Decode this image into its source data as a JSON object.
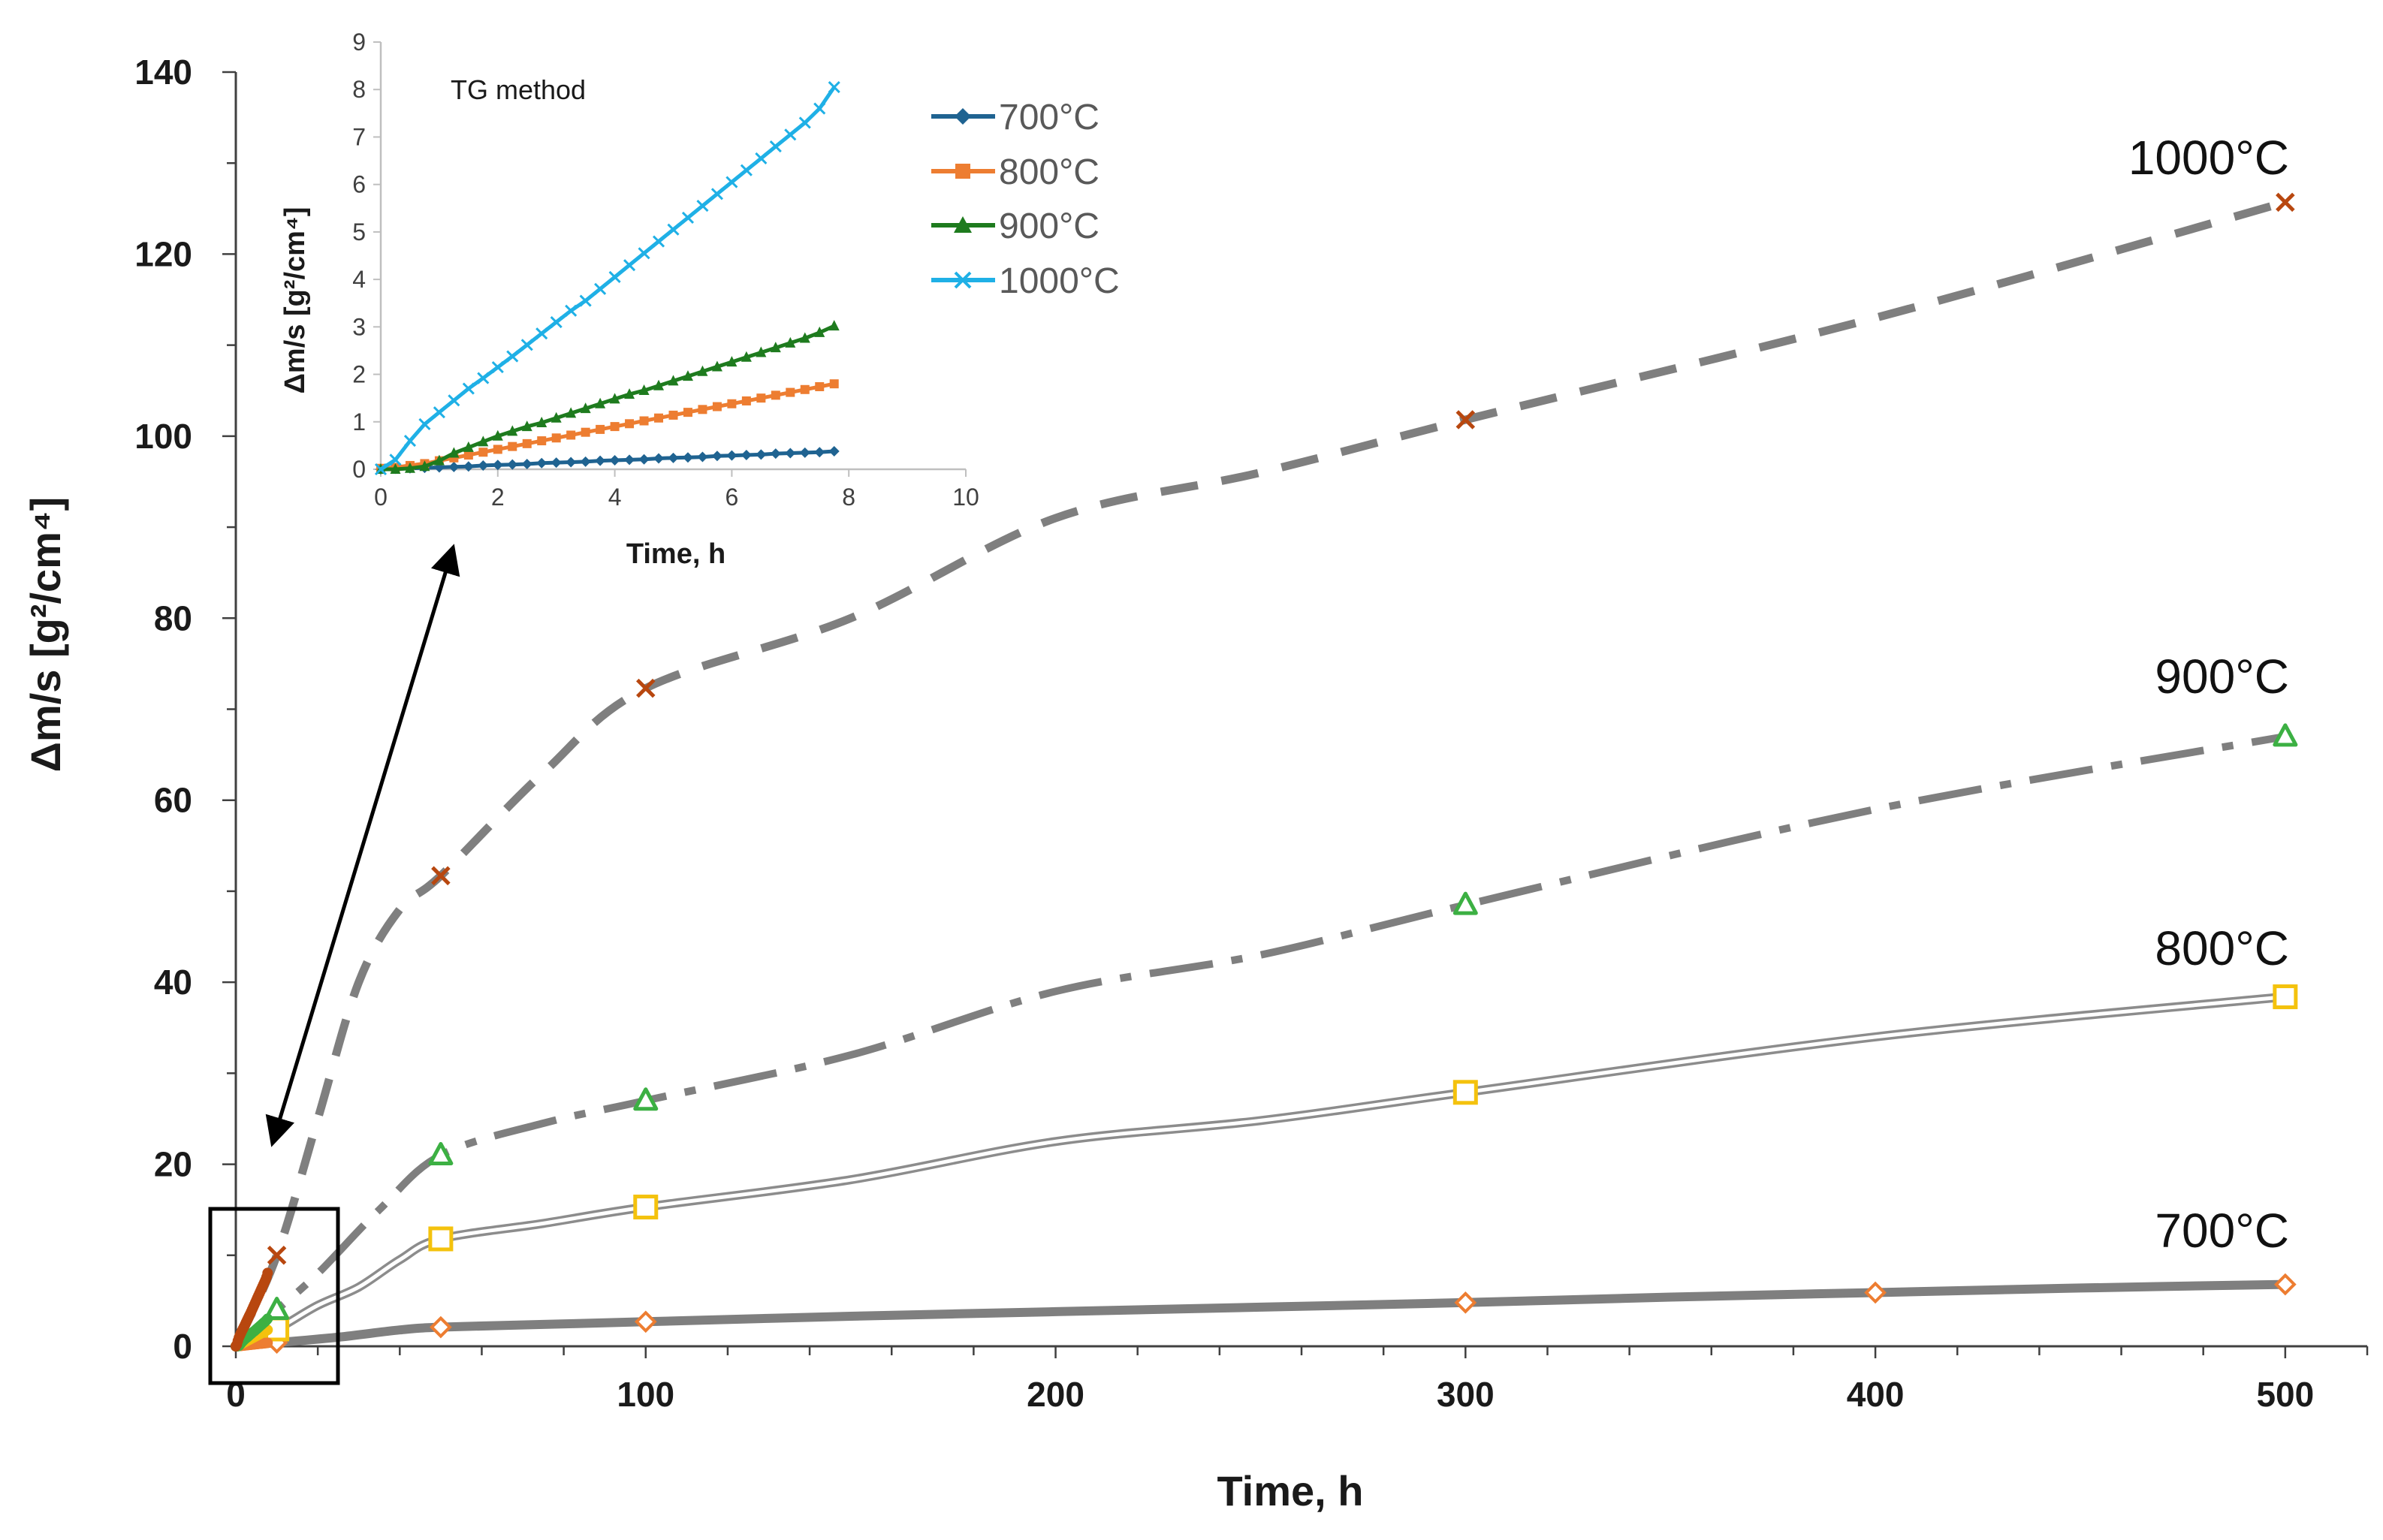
{
  "chart_data": [
    {
      "type": "line",
      "xlabel": "Time, h",
      "ylabel": "Δm/s [g²/cm⁴]",
      "xlim": [
        0,
        520
      ],
      "ylim": [
        0,
        140
      ],
      "x_ticks": [
        0,
        100,
        200,
        300,
        400,
        500
      ],
      "y_ticks": [
        0,
        20,
        40,
        60,
        80,
        100,
        120,
        140
      ],
      "series": [
        {
          "name": "700°C",
          "label": "700°C",
          "marker": "diamond-open",
          "marker_color": "#ED7D31",
          "line_style": "thick-solid",
          "x": [
            10,
            50,
            100,
            300,
            400,
            500
          ],
          "values": [
            0.4,
            2.1,
            2.7,
            4.8,
            5.9,
            6.8
          ],
          "curve": [
            [
              0,
              0
            ],
            [
              10,
              0.4
            ],
            [
              25,
              1.0
            ],
            [
              40,
              1.8
            ],
            [
              50,
              2.1
            ],
            [
              75,
              2.4
            ],
            [
              100,
              2.7
            ],
            [
              150,
              3.3
            ],
            [
              200,
              3.8
            ],
            [
              250,
              4.3
            ],
            [
              300,
              4.8
            ],
            [
              350,
              5.4
            ],
            [
              400,
              5.9
            ],
            [
              450,
              6.4
            ],
            [
              500,
              6.8
            ]
          ]
        },
        {
          "name": "800°C",
          "label": "800°C",
          "marker": "square-open",
          "marker_color": "#F4C20D",
          "line_style": "double",
          "x": [
            10,
            50,
            100,
            300,
            500
          ],
          "values": [
            1.9,
            11.8,
            15.3,
            27.9,
            38.4
          ],
          "curve": [
            [
              0,
              0
            ],
            [
              10,
              1.9
            ],
            [
              20,
              4.5
            ],
            [
              30,
              6.5
            ],
            [
              40,
              9.5
            ],
            [
              50,
              11.8
            ],
            [
              75,
              13.5
            ],
            [
              100,
              15.3
            ],
            [
              150,
              18.3
            ],
            [
              200,
              22.5
            ],
            [
              250,
              24.8
            ],
            [
              300,
              27.9
            ],
            [
              400,
              34.0
            ],
            [
              500,
              38.4
            ]
          ]
        },
        {
          "name": "900°C",
          "label": "900°C",
          "marker": "triangle-open",
          "marker_color": "#3CB043",
          "line_style": "dash-dot",
          "x": [
            10,
            50,
            100,
            300,
            500
          ],
          "values": [
            4.0,
            21.0,
            27.0,
            48.5,
            67.0
          ],
          "curve": [
            [
              0,
              0
            ],
            [
              10,
              4.0
            ],
            [
              20,
              8.0
            ],
            [
              35,
              15.0
            ],
            [
              50,
              21.0
            ],
            [
              75,
              24.5
            ],
            [
              100,
              27.0
            ],
            [
              150,
              32.0
            ],
            [
              200,
              39.0
            ],
            [
              250,
              43.0
            ],
            [
              300,
              48.5
            ],
            [
              400,
              59.0
            ],
            [
              500,
              67.0
            ]
          ]
        },
        {
          "name": "1000°C",
          "label": "1000°C",
          "marker": "x",
          "marker_color": "#B8470F",
          "line_style": "dashed",
          "x": [
            10,
            50,
            100,
            300,
            500
          ],
          "values": [
            10.0,
            51.7,
            72.3,
            101.8,
            125.7
          ],
          "curve": [
            [
              0,
              0
            ],
            [
              10,
              10.0
            ],
            [
              20,
              25.0
            ],
            [
              30,
              40.0
            ],
            [
              40,
              48.0
            ],
            [
              50,
              51.7
            ],
            [
              75,
              63.0
            ],
            [
              100,
              72.3
            ],
            [
              150,
              80.0
            ],
            [
              200,
              91.0
            ],
            [
              250,
              96.0
            ],
            [
              300,
              101.8
            ],
            [
              400,
              113.0
            ],
            [
              500,
              125.7
            ]
          ]
        }
      ]
    },
    {
      "type": "line",
      "title": "TG method",
      "xlabel": "Time, h",
      "ylabel": "Δm/s [g²/cm⁴]",
      "xlim": [
        0,
        10
      ],
      "ylim": [
        0,
        9
      ],
      "x_ticks": [
        0,
        2,
        4,
        6,
        8,
        10
      ],
      "y_ticks": [
        0,
        1,
        2,
        3,
        4,
        5,
        6,
        7,
        8,
        9
      ],
      "legend_position": "right",
      "series": [
        {
          "name": "700°C",
          "color": "#1F6391",
          "marker": "diamond",
          "x": [
            0.0,
            0.25,
            0.5,
            0.75,
            1.0,
            1.25,
            1.5,
            1.75,
            2.0,
            2.25,
            2.5,
            2.75,
            3.0,
            3.25,
            3.5,
            3.75,
            4.0,
            4.25,
            4.5,
            4.75,
            5.0,
            5.25,
            5.5,
            5.75,
            6.0,
            6.25,
            6.5,
            6.75,
            7.0,
            7.25,
            7.5,
            7.75
          ],
          "values": [
            0.0,
            0.01,
            0.02,
            0.03,
            0.04,
            0.05,
            0.06,
            0.08,
            0.09,
            0.1,
            0.11,
            0.13,
            0.14,
            0.15,
            0.16,
            0.18,
            0.19,
            0.2,
            0.21,
            0.23,
            0.24,
            0.25,
            0.26,
            0.28,
            0.29,
            0.3,
            0.31,
            0.33,
            0.34,
            0.35,
            0.36,
            0.38
          ]
        },
        {
          "name": "800°C",
          "color": "#ED7D31",
          "marker": "square",
          "x": [
            0.0,
            0.25,
            0.5,
            0.75,
            1.0,
            1.25,
            1.5,
            1.75,
            2.0,
            2.25,
            2.5,
            2.75,
            3.0,
            3.25,
            3.5,
            3.75,
            4.0,
            4.25,
            4.5,
            4.75,
            5.0,
            5.25,
            5.5,
            5.75,
            6.0,
            6.25,
            6.5,
            6.75,
            7.0,
            7.25,
            7.5,
            7.75
          ],
          "values": [
            0.02,
            0.04,
            0.08,
            0.12,
            0.18,
            0.24,
            0.3,
            0.36,
            0.42,
            0.48,
            0.54,
            0.6,
            0.66,
            0.72,
            0.78,
            0.84,
            0.9,
            0.96,
            1.02,
            1.08,
            1.14,
            1.2,
            1.26,
            1.32,
            1.38,
            1.44,
            1.5,
            1.56,
            1.62,
            1.68,
            1.74,
            1.8
          ]
        },
        {
          "name": "900°C",
          "color": "#1E7B1E",
          "marker": "triangle",
          "x": [
            0.0,
            0.25,
            0.5,
            0.75,
            1.0,
            1.25,
            1.5,
            1.75,
            2.0,
            2.25,
            2.5,
            2.75,
            3.0,
            3.25,
            3.5,
            3.75,
            4.0,
            4.25,
            4.5,
            4.75,
            5.0,
            5.25,
            5.5,
            5.75,
            6.0,
            6.25,
            6.5,
            6.75,
            7.0,
            7.25,
            7.5,
            7.75
          ],
          "values": [
            0.0,
            0.0,
            0.02,
            0.06,
            0.18,
            0.34,
            0.46,
            0.58,
            0.7,
            0.8,
            0.9,
            0.98,
            1.08,
            1.18,
            1.28,
            1.38,
            1.48,
            1.58,
            1.66,
            1.76,
            1.86,
            1.96,
            2.06,
            2.16,
            2.26,
            2.36,
            2.46,
            2.56,
            2.66,
            2.76,
            2.88,
            3.02
          ]
        },
        {
          "name": "1000°C",
          "color": "#1FB0E6",
          "marker": "x",
          "x": [
            0.0,
            0.25,
            0.5,
            0.75,
            1.0,
            1.25,
            1.5,
            1.75,
            2.0,
            2.25,
            2.5,
            2.75,
            3.0,
            3.25,
            3.5,
            3.75,
            4.0,
            4.25,
            4.5,
            4.75,
            5.0,
            5.25,
            5.5,
            5.75,
            6.0,
            6.25,
            6.5,
            6.75,
            7.0,
            7.25,
            7.5,
            7.75
          ],
          "values": [
            0.0,
            0.2,
            0.6,
            0.95,
            1.2,
            1.45,
            1.7,
            1.92,
            2.15,
            2.38,
            2.62,
            2.86,
            3.1,
            3.34,
            3.55,
            3.8,
            4.05,
            4.3,
            4.55,
            4.8,
            5.05,
            5.3,
            5.55,
            5.8,
            6.05,
            6.3,
            6.55,
            6.8,
            7.05,
            7.3,
            7.6,
            8.05
          ]
        }
      ]
    }
  ]
}
